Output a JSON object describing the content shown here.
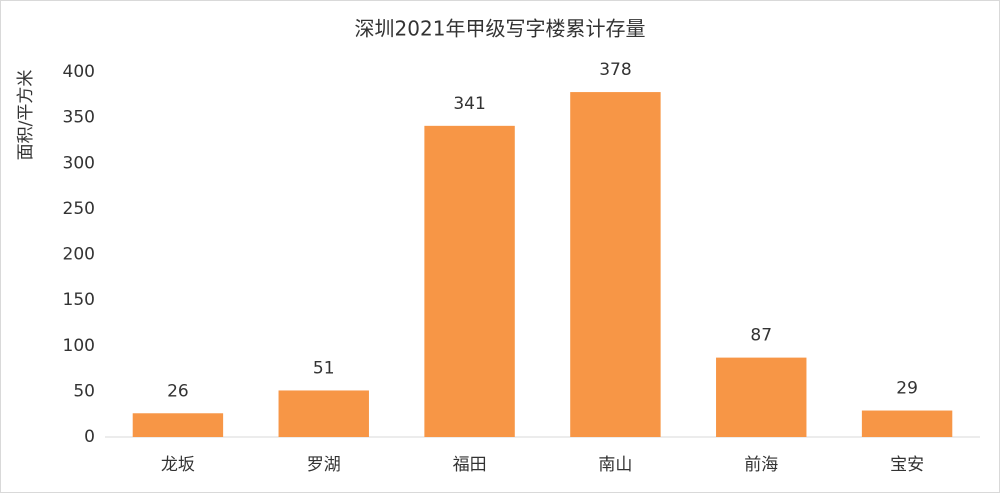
{
  "chart_data": {
    "type": "bar",
    "title": "深圳2021年甲级写字楼累计存量",
    "y_label": "面积/平方米",
    "categories": [
      "龙坂",
      "罗湖",
      "福田",
      "南山",
      "前海",
      "宝安"
    ],
    "values": [
      26,
      51,
      341,
      378,
      87,
      29
    ],
    "color": "#f79646",
    "ylim": [
      0,
      400
    ],
    "yticks": [
      0,
      50,
      100,
      150,
      200,
      250,
      300,
      350,
      400
    ],
    "grid": false
  }
}
